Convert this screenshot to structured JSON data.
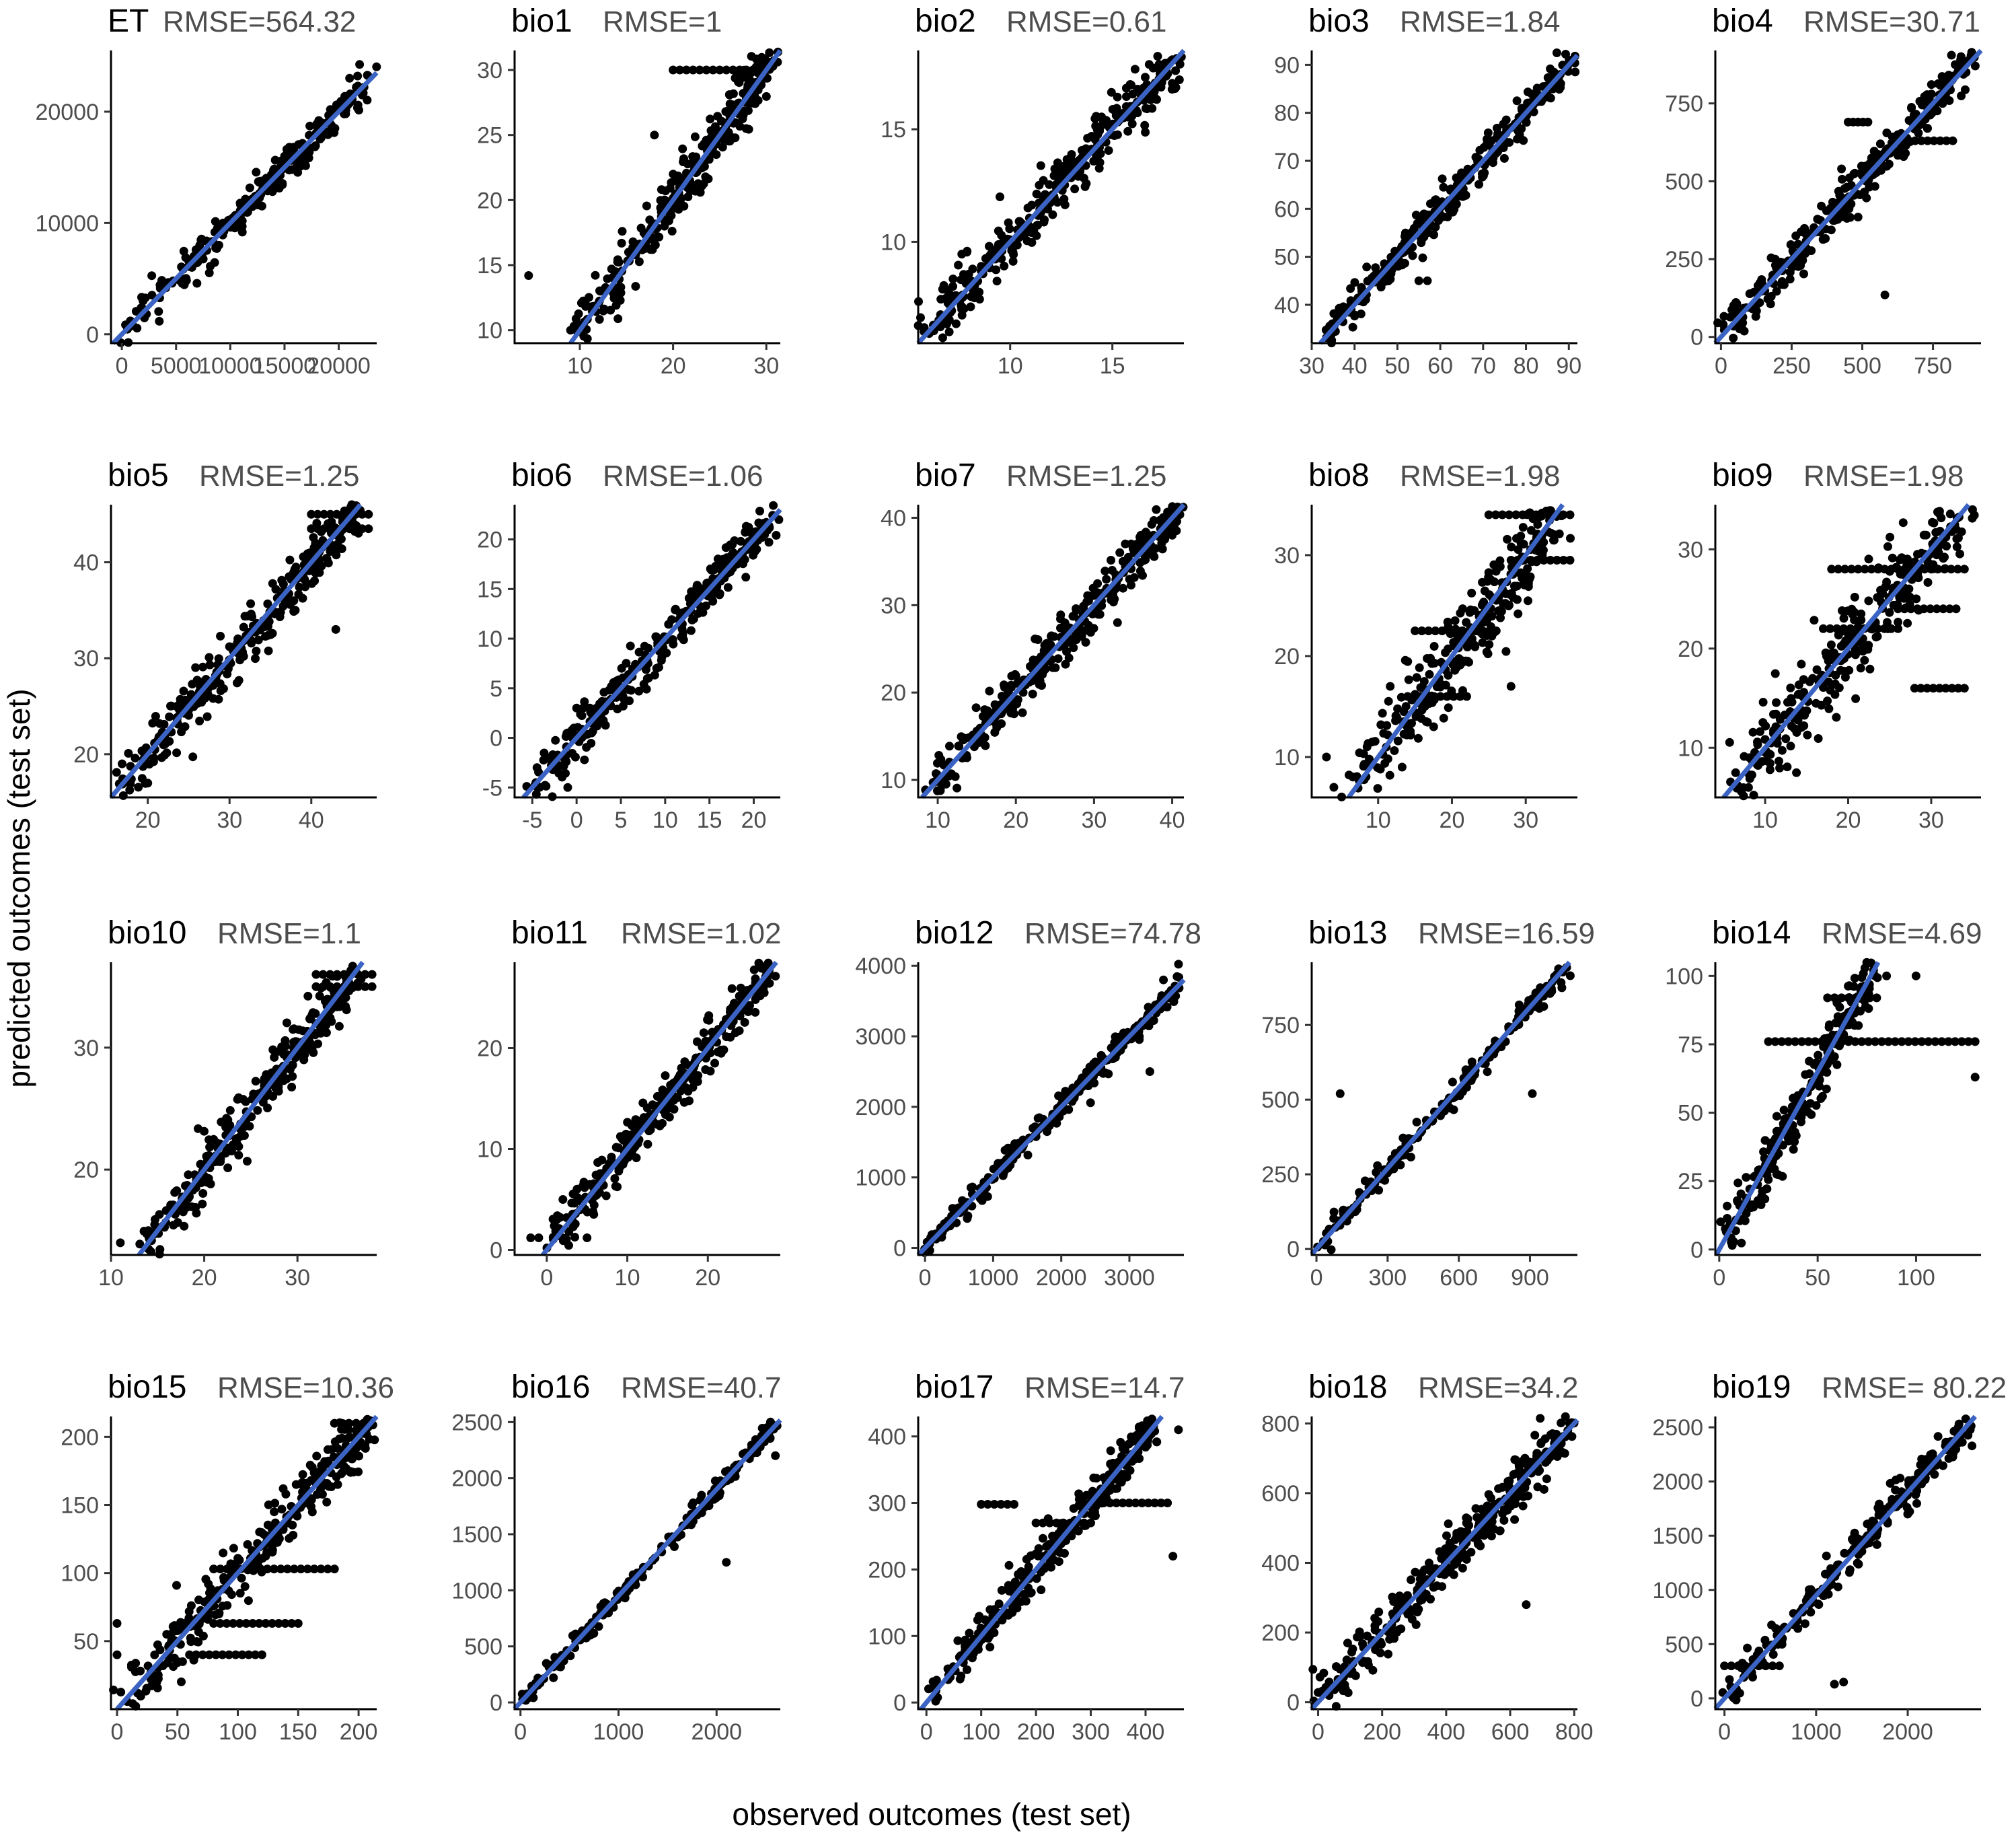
{
  "figure": {
    "xlabel": "observed outcomes (test set)",
    "ylabel": "predicted outcomes (test set)"
  },
  "colors": {
    "fit_line": "#3a63c4",
    "points": "#000000",
    "axis": "#000000",
    "tick_text": "#4d4d4d"
  },
  "chart_data": [
    {
      "type": "scatter",
      "name": "ET",
      "rmse_label": "RMSE=564.32",
      "xlim": [
        -1000,
        23500
      ],
      "ylim": [
        -800,
        25500
      ],
      "xticks": [
        0,
        5000,
        10000,
        15000,
        20000
      ],
      "xtick_labels": [
        "0",
        "5000",
        "10000",
        "15000",
        "20000"
      ],
      "yticks": [
        0,
        10000,
        20000
      ],
      "ytick_labels": [
        "0",
        "10000",
        "20000"
      ],
      "fit": {
        "slope": 1.0,
        "intercept": 0
      },
      "n_points": 260,
      "scatter_spread": 800,
      "seed": 11,
      "outliers": [
        [
          12300,
          12400
        ],
        [
          20500,
          19800
        ],
        [
          21000,
          23000
        ]
      ],
      "bands": [
        [
          15000,
          17000,
          16000
        ]
      ]
    },
    {
      "type": "scatter",
      "name": "bio1",
      "rmse_label": "RMSE=1",
      "xlim": [
        3,
        31.5
      ],
      "ylim": [
        9,
        31.5
      ],
      "xticks": [
        10,
        20,
        30
      ],
      "xtick_labels": [
        "10",
        "20",
        "30"
      ],
      "yticks": [
        10,
        15,
        20,
        25,
        30
      ],
      "ytick_labels": [
        "10",
        "15",
        "20",
        "25",
        "30"
      ],
      "fit": {
        "slope": 1.0,
        "intercept": 0
      },
      "n_points": 320,
      "scatter_spread": 1.0,
      "seed": 12,
      "outliers": [
        [
          4.5,
          14.2
        ],
        [
          9,
          10
        ],
        [
          18,
          25
        ]
      ],
      "bands": [
        [
          20,
          30,
          30
        ]
      ]
    },
    {
      "type": "scatter",
      "name": "bio2",
      "rmse_label": "RMSE=0.61",
      "xlim": [
        5.5,
        18.5
      ],
      "ylim": [
        5.5,
        18.5
      ],
      "xticks": [
        10,
        15
      ],
      "xtick_labels": [
        "10",
        "15"
      ],
      "yticks": [
        10,
        15
      ],
      "ytick_labels": [
        "10",
        "15"
      ],
      "fit": {
        "slope": 1.0,
        "intercept": 0
      },
      "n_points": 320,
      "scatter_spread": 0.6,
      "seed": 13,
      "outliers": [
        [
          7,
          6.5
        ],
        [
          9.5,
          12
        ]
      ],
      "bands": []
    },
    {
      "type": "scatter",
      "name": "bio3",
      "rmse_label": "RMSE=1.84",
      "xlim": [
        30,
        92
      ],
      "ylim": [
        32,
        93
      ],
      "xticks": [
        30,
        40,
        50,
        60,
        70,
        80,
        90
      ],
      "xtick_labels": [
        "30",
        "40",
        "50",
        "60",
        "70",
        "80",
        "90"
      ],
      "yticks": [
        40,
        50,
        60,
        70,
        80,
        90
      ],
      "ytick_labels": [
        "40",
        "50",
        "60",
        "70",
        "80",
        "90"
      ],
      "fit": {
        "slope": 1.0,
        "intercept": 0
      },
      "n_points": 320,
      "scatter_spread": 1.8,
      "seed": 14,
      "outliers": [
        [
          55,
          45
        ],
        [
          57,
          45
        ]
      ],
      "bands": []
    },
    {
      "type": "scatter",
      "name": "bio4",
      "rmse_label": "RMSE=30.71",
      "xlim": [
        -20,
        920
      ],
      "ylim": [
        -20,
        920
      ],
      "xticks": [
        0,
        250,
        500,
        750
      ],
      "xtick_labels": [
        "0",
        "250",
        "500",
        "750"
      ],
      "yticks": [
        0,
        250,
        500,
        750
      ],
      "ytick_labels": [
        "0",
        "250",
        "500",
        "750"
      ],
      "fit": {
        "slope": 1.0,
        "intercept": 0
      },
      "n_points": 300,
      "scatter_spread": 30,
      "seed": 15,
      "outliers": [
        [
          580,
          135
        ]
      ],
      "bands": [
        [
          450,
          520,
          690
        ],
        [
          620,
          820,
          630
        ]
      ]
    },
    {
      "type": "scatter",
      "name": "bio5",
      "rmse_label": "RMSE=1.25",
      "xlim": [
        15.5,
        48
      ],
      "ylim": [
        15.5,
        46
      ],
      "xticks": [
        20,
        30,
        40
      ],
      "xtick_labels": [
        "20",
        "30",
        "40"
      ],
      "yticks": [
        20,
        30,
        40
      ],
      "ytick_labels": [
        "20",
        "30",
        "40"
      ],
      "fit": {
        "slope": 1.0,
        "intercept": 0
      },
      "n_points": 300,
      "scatter_spread": 1.3,
      "seed": 16,
      "outliers": [
        [
          43,
          33
        ]
      ],
      "bands": [
        [
          40,
          47,
          45
        ],
        [
          40,
          47,
          43.5
        ]
      ]
    },
    {
      "type": "scatter",
      "name": "bio6",
      "rmse_label": "RMSE=1.06",
      "xlim": [
        -7,
        23
      ],
      "ylim": [
        -6,
        23.5
      ],
      "xticks": [
        -5,
        0,
        5,
        10,
        15,
        20
      ],
      "xtick_labels": [
        "-5",
        "0",
        "5",
        "10",
        "15",
        "20"
      ],
      "yticks": [
        -5,
        0,
        5,
        10,
        15,
        20
      ],
      "ytick_labels": [
        "-5",
        "0",
        "5",
        "10",
        "15",
        "20"
      ],
      "fit": {
        "slope": 1.0,
        "intercept": 0
      },
      "n_points": 320,
      "scatter_spread": 1.0,
      "seed": 17,
      "outliers": [
        [
          -1,
          -5
        ]
      ],
      "bands": [
        [
          0,
          3,
          3
        ]
      ]
    },
    {
      "type": "scatter",
      "name": "bio7",
      "rmse_label": "RMSE=1.25",
      "xlim": [
        7.5,
        41.5
      ],
      "ylim": [
        8,
        41.5
      ],
      "xticks": [
        10,
        20,
        30,
        40
      ],
      "xtick_labels": [
        "10",
        "20",
        "30",
        "40"
      ],
      "yticks": [
        10,
        20,
        30,
        40
      ],
      "ytick_labels": [
        "10",
        "20",
        "30",
        "40"
      ],
      "fit": {
        "slope": 1.0,
        "intercept": 0
      },
      "n_points": 300,
      "scatter_spread": 1.2,
      "seed": 18,
      "outliers": [
        [
          33,
          28
        ]
      ],
      "bands": [
        [
          36,
          40,
          38
        ],
        [
          34,
          37,
          37
        ]
      ]
    },
    {
      "type": "scatter",
      "name": "bio8",
      "rmse_label": "RMSE=1.98",
      "xlim": [
        1,
        37
      ],
      "ylim": [
        6,
        35
      ],
      "xticks": [
        10,
        20,
        30
      ],
      "xtick_labels": [
        "10",
        "20",
        "30"
      ],
      "yticks": [
        10,
        20,
        30
      ],
      "ytick_labels": [
        "10",
        "20",
        "30"
      ],
      "fit": {
        "slope": 1.0,
        "intercept": 0
      },
      "n_points": 290,
      "scatter_spread": 2.0,
      "seed": 19,
      "outliers": [
        [
          3,
          10
        ],
        [
          4,
          7
        ],
        [
          28,
          17
        ]
      ],
      "bands": [
        [
          25,
          36,
          34
        ],
        [
          28,
          36,
          29.5
        ],
        [
          15,
          26,
          22.5
        ],
        [
          14,
          22,
          16
        ]
      ]
    },
    {
      "type": "scatter",
      "name": "bio9",
      "rmse_label": "RMSE=1.98",
      "xlim": [
        4,
        36
      ],
      "ylim": [
        5,
        34.5
      ],
      "xticks": [
        10,
        20,
        30
      ],
      "xtick_labels": [
        "10",
        "20",
        "30"
      ],
      "yticks": [
        10,
        20,
        30
      ],
      "ytick_labels": [
        "10",
        "20",
        "30"
      ],
      "fit": {
        "slope": 1.0,
        "intercept": 0
      },
      "n_points": 290,
      "scatter_spread": 2.0,
      "seed": 20,
      "outliers": [
        [
          8,
          6
        ]
      ],
      "bands": [
        [
          18,
          34,
          28
        ],
        [
          17,
          26,
          22
        ],
        [
          26,
          33,
          24
        ],
        [
          28,
          34,
          16
        ]
      ]
    },
    {
      "type": "scatter",
      "name": "bio10",
      "rmse_label": "RMSE=1.1",
      "xlim": [
        10,
        38.5
      ],
      "ylim": [
        13,
        37
      ],
      "xticks": [
        10,
        20,
        30
      ],
      "xtick_labels": [
        "10",
        "20",
        "30"
      ],
      "yticks": [
        20,
        30
      ],
      "ytick_labels": [
        "20",
        "30"
      ],
      "fit": {
        "slope": 1.0,
        "intercept": 0
      },
      "n_points": 300,
      "scatter_spread": 1.1,
      "seed": 21,
      "outliers": [
        [
          11,
          14
        ],
        [
          14,
          15
        ]
      ],
      "bands": [
        [
          32,
          38,
          35
        ],
        [
          32,
          38,
          36
        ]
      ]
    },
    {
      "type": "scatter",
      "name": "bio11",
      "rmse_label": "RMSE=1.02",
      "xlim": [
        -4,
        29
      ],
      "ylim": [
        -0.5,
        28.5
      ],
      "xticks": [
        0,
        10,
        20
      ],
      "xtick_labels": [
        "0",
        "10",
        "20"
      ],
      "yticks": [
        0,
        10,
        20
      ],
      "ytick_labels": [
        "0",
        "10",
        "20"
      ],
      "fit": {
        "slope": 1.0,
        "intercept": 0
      },
      "n_points": 300,
      "scatter_spread": 1.0,
      "seed": 22,
      "outliers": [
        [
          -2,
          1.2
        ],
        [
          -1,
          1.2
        ],
        [
          5,
          1.2
        ],
        [
          2,
          5
        ]
      ],
      "bands": []
    },
    {
      "type": "scatter",
      "name": "bio12",
      "rmse_label": "RMSE=74.78",
      "xlim": [
        -100,
        3800
      ],
      "ylim": [
        -100,
        4050
      ],
      "xticks": [
        0,
        1000,
        2000,
        3000
      ],
      "xtick_labels": [
        "0",
        "1000",
        "2000",
        "3000"
      ],
      "yticks": [
        0,
        1000,
        2000,
        3000,
        4000
      ],
      "ytick_labels": [
        "0",
        "1000",
        "2000",
        "3000",
        "4000"
      ],
      "fit": {
        "slope": 1.0,
        "intercept": 0
      },
      "n_points": 260,
      "scatter_spread": 80,
      "seed": 23,
      "outliers": [
        [
          3500,
          3800
        ],
        [
          3300,
          2500
        ]
      ],
      "bands": []
    },
    {
      "type": "scatter",
      "name": "bio13",
      "rmse_label": "RMSE=16.59",
      "xlim": [
        -20,
        1100
      ],
      "ylim": [
        -20,
        960
      ],
      "xticks": [
        0,
        300,
        600,
        900
      ],
      "xtick_labels": [
        "0",
        "300",
        "600",
        "900"
      ],
      "yticks": [
        0,
        250,
        500,
        750
      ],
      "ytick_labels": [
        "0",
        "250",
        "500",
        "750"
      ],
      "fit": {
        "slope": 0.9,
        "intercept": 0
      },
      "n_points": 200,
      "scatter_spread": 20,
      "seed": 24,
      "outliers": [
        [
          1070,
          915
        ],
        [
          910,
          520
        ],
        [
          100,
          520
        ]
      ],
      "bands": []
    },
    {
      "type": "scatter",
      "name": "bio14",
      "rmse_label": "RMSE=4.69",
      "xlim": [
        -2,
        133
      ],
      "ylim": [
        -2,
        105
      ],
      "xticks": [
        0,
        50,
        100
      ],
      "xtick_labels": [
        "0",
        "50",
        "100"
      ],
      "yticks": [
        0,
        25,
        50,
        75,
        100
      ],
      "ytick_labels": [
        "0",
        "25",
        "50",
        "75",
        "100"
      ],
      "fit": {
        "slope": 1.3,
        "intercept": 0
      },
      "n_points": 240,
      "scatter_spread": 5,
      "seed": 25,
      "outliers": [
        [
          130,
          63
        ],
        [
          85,
          100
        ],
        [
          100,
          100
        ]
      ],
      "bands": [
        [
          25,
          130,
          76
        ],
        [
          55,
          80,
          92
        ]
      ]
    },
    {
      "type": "scatter",
      "name": "bio15",
      "rmse_label": "RMSE=10.36",
      "xlim": [
        -5,
        215
      ],
      "ylim": [
        0,
        215
      ],
      "xticks": [
        0,
        50,
        100,
        150,
        200
      ],
      "xtick_labels": [
        "0",
        "50",
        "100",
        "150",
        "200"
      ],
      "yticks": [
        50,
        100,
        150,
        200
      ],
      "ytick_labels": [
        "50",
        "100",
        "150",
        "200"
      ],
      "fit": {
        "slope": 1.0,
        "intercept": 0
      },
      "n_points": 300,
      "scatter_spread": 11,
      "seed": 26,
      "outliers": [
        [
          0,
          63
        ],
        [
          0,
          40
        ]
      ],
      "bands": [
        [
          80,
          180,
          103
        ],
        [
          80,
          150,
          63
        ],
        [
          60,
          120,
          40
        ],
        [
          180,
          210,
          210
        ]
      ]
    },
    {
      "type": "scatter",
      "name": "bio16",
      "rmse_label": "RMSE=40.7",
      "xlim": [
        -60,
        2650
      ],
      "ylim": [
        -60,
        2550
      ],
      "xticks": [
        0,
        1000,
        2000
      ],
      "xtick_labels": [
        "0",
        "1000",
        "2000"
      ],
      "yticks": [
        0,
        500,
        1000,
        1500,
        2000,
        2500
      ],
      "ytick_labels": [
        "0",
        "500",
        "1000",
        "1500",
        "2000",
        "2500"
      ],
      "fit": {
        "slope": 0.95,
        "intercept": 0
      },
      "n_points": 200,
      "scatter_spread": 40,
      "seed": 27,
      "outliers": [
        [
          2600,
          2200
        ],
        [
          2100,
          1250
        ],
        [
          2550,
          2500
        ]
      ],
      "bands": []
    },
    {
      "type": "scatter",
      "name": "bio17",
      "rmse_label": "RMSE=14.7",
      "xlim": [
        -15,
        470
      ],
      "ylim": [
        -10,
        430
      ],
      "xticks": [
        0,
        100,
        200,
        300,
        400
      ],
      "xtick_labels": [
        "0",
        "100",
        "200",
        "300",
        "400"
      ],
      "yticks": [
        0,
        100,
        200,
        300,
        400
      ],
      "ytick_labels": [
        "0",
        "100",
        "200",
        "300",
        "400"
      ],
      "fit": {
        "slope": 1.0,
        "intercept": 0
      },
      "n_points": 280,
      "scatter_spread": 15,
      "seed": 28,
      "outliers": [
        [
          450,
          220
        ],
        [
          460,
          410
        ]
      ],
      "bands": [
        [
          300,
          440,
          300
        ],
        [
          100,
          160,
          298
        ],
        [
          200,
          300,
          270
        ]
      ]
    },
    {
      "type": "scatter",
      "name": "bio18",
      "rmse_label": "RMSE=34.2",
      "xlim": [
        -20,
        810
      ],
      "ylim": [
        -20,
        820
      ],
      "xticks": [
        0,
        200,
        400,
        600,
        800
      ],
      "xtick_labels": [
        "0",
        "200",
        "400",
        "600",
        "800"
      ],
      "yticks": [
        0,
        200,
        400,
        600,
        800
      ],
      "ytick_labels": [
        "0",
        "200",
        "400",
        "600",
        "800"
      ],
      "fit": {
        "slope": 1.0,
        "intercept": 0
      },
      "n_points": 320,
      "scatter_spread": 36,
      "seed": 29,
      "outliers": [
        [
          650,
          280
        ],
        [
          780,
          780
        ]
      ],
      "bands": []
    },
    {
      "type": "scatter",
      "name": "bio19",
      "rmse_label": "RMSE= 80.22",
      "xlim": [
        -100,
        2800
      ],
      "ylim": [
        -100,
        2600
      ],
      "xticks": [
        0,
        1000,
        2000
      ],
      "xtick_labels": [
        "0",
        "1000",
        "2000"
      ],
      "yticks": [
        0,
        500,
        1000,
        1500,
        2000,
        2500
      ],
      "ytick_labels": [
        "0",
        "500",
        "1000",
        "1500",
        "2000",
        "2500"
      ],
      "fit": {
        "slope": 0.95,
        "intercept": 0
      },
      "n_points": 220,
      "scatter_spread": 80,
      "seed": 30,
      "outliers": [
        [
          2550,
          2450
        ],
        [
          2000,
          1700
        ],
        [
          1300,
          150
        ],
        [
          1200,
          130
        ]
      ],
      "bands": [
        [
          0,
          600,
          300
        ]
      ]
    }
  ]
}
